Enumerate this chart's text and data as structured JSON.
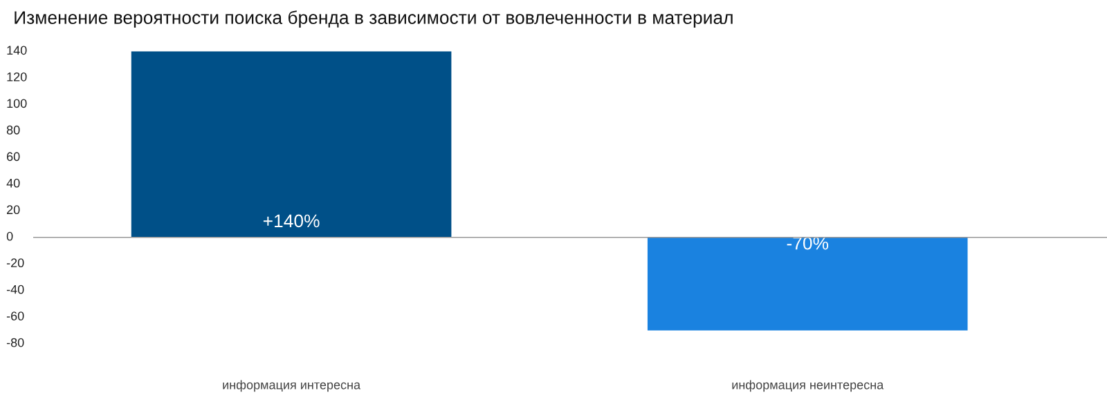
{
  "chart_data": {
    "type": "bar",
    "title": "Изменение вероятности поиска бренда в зависимости от вовлеченности в материал",
    "categories": [
      "информация интересна",
      "информация неинтересна"
    ],
    "values": [
      140,
      -70
    ],
    "colors": [
      "#005088",
      "#1a82e0"
    ],
    "value_labels": [
      "+140%",
      "-70%"
    ],
    "ylim": [
      -80,
      140
    ],
    "ref_lines": [
      {
        "axis": "y",
        "value": 0,
        "color": "#999999"
      }
    ],
    "yticks": [
      -80,
      -60,
      -40,
      -20,
      0,
      20,
      40,
      60,
      80,
      100,
      120,
      140
    ],
    "grid": false,
    "legend": false
  }
}
